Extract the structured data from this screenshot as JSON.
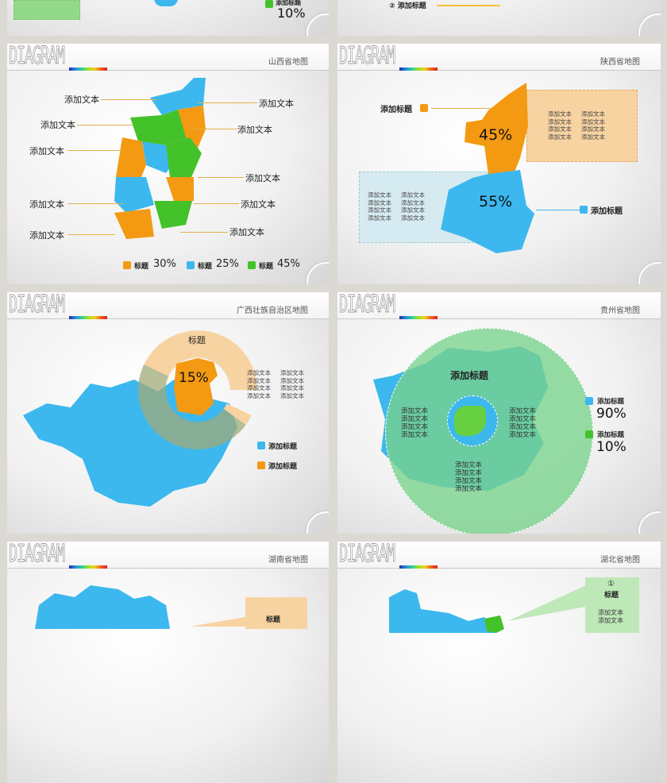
{
  "colors": {
    "orange": "#f39a12",
    "blue": "#3cb8ee",
    "green": "#44c22a",
    "light_orange": "#f8d3a2",
    "light_blue": "#d6ebf1",
    "light_green": "#93d98a"
  },
  "top_left": {
    "legend_label": "添加标题",
    "percent": "10%"
  },
  "top_right": {
    "label": "② 添加标题"
  },
  "shanxi": {
    "title": "山西省地图",
    "logo": "DIAGRAM",
    "labels": [
      "添加文本",
      "添加文本",
      "添加文本",
      "添加文本",
      "添加文本",
      "添加文本",
      "添加文本",
      "添加文本",
      "添加文本",
      "添加文本"
    ],
    "legend": [
      {
        "label": "标题",
        "value": "30%"
      },
      {
        "label": "标题",
        "value": "25%"
      },
      {
        "label": "标题",
        "value": "45%"
      }
    ]
  },
  "shaanxi": {
    "title": "陕西省地图",
    "logo": "DIAGRAM",
    "north_label": "添加标题",
    "north_pct": "45%",
    "south_label": "添加标题",
    "south_pct": "55%",
    "text": "添加文本"
  },
  "guangxi": {
    "title": "广西壮族自治区地图",
    "logo": "DIAGRAM",
    "ring_title": "标题",
    "pct": "15%",
    "text": "添加文本",
    "legend": [
      "添加标题",
      "添加标题"
    ]
  },
  "guizhou": {
    "title": "贵州省地图",
    "logo": "DIAGRAM",
    "circle_title": "添加标题",
    "text": "添加文本",
    "legend": [
      {
        "label": "添加标题",
        "value": "90%"
      },
      {
        "label": "添加标题",
        "value": "10%"
      }
    ]
  },
  "hunan": {
    "title": "湖南省地图",
    "logo": "DIAGRAM",
    "box_title": "标题"
  },
  "hubei": {
    "title": "湖北省地图",
    "logo": "DIAGRAM",
    "box_num": "①",
    "box_title": "标题",
    "text": "添加文本"
  }
}
